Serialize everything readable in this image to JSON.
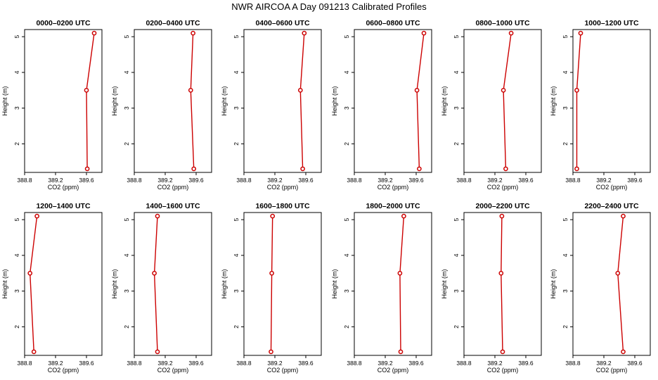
{
  "title": "NWR AIRCOA A  Day 091213  Calibrated Profiles",
  "chart_data": [
    {
      "type": "line",
      "title": "0000–0200 UTC",
      "xlabel": "CO2 (ppm)",
      "ylabel": "Height (m)",
      "xlim": [
        388.8,
        389.8
      ],
      "ylim": [
        1.2,
        5.2
      ],
      "xticks": [
        "388.8",
        "389.2",
        "389.6"
      ],
      "yticks": [
        "2",
        "3",
        "4",
        "5"
      ],
      "grid": false,
      "series": [
        {
          "points": [
            {
              "x": 389.61,
              "y": 1.3
            },
            {
              "x": 389.6,
              "y": 3.5
            },
            {
              "x": 389.7,
              "y": 5.1
            }
          ]
        }
      ]
    },
    {
      "type": "line",
      "title": "0200–0400 UTC",
      "xlabel": "CO2 (ppm)",
      "ylabel": "Height (m)",
      "xlim": [
        388.8,
        389.8
      ],
      "ylim": [
        1.2,
        5.2
      ],
      "xticks": [
        "388.8",
        "389.2",
        "389.6"
      ],
      "yticks": [
        "2",
        "3",
        "4",
        "5"
      ],
      "grid": false,
      "series": [
        {
          "points": [
            {
              "x": 389.57,
              "y": 1.3
            },
            {
              "x": 389.53,
              "y": 3.5
            },
            {
              "x": 389.56,
              "y": 5.1
            }
          ]
        }
      ]
    },
    {
      "type": "line",
      "title": "0400–0600 UTC",
      "xlabel": "CO2 (ppm)",
      "ylabel": "Height (m)",
      "xlim": [
        388.8,
        389.8
      ],
      "ylim": [
        1.2,
        5.2
      ],
      "xticks": [
        "388.8",
        "389.2",
        "389.6"
      ],
      "yticks": [
        "2",
        "3",
        "4",
        "5"
      ],
      "grid": false,
      "series": [
        {
          "points": [
            {
              "x": 389.56,
              "y": 1.3
            },
            {
              "x": 389.53,
              "y": 3.5
            },
            {
              "x": 389.58,
              "y": 5.1
            }
          ]
        }
      ]
    },
    {
      "type": "line",
      "title": "0600–0800 UTC",
      "xlabel": "CO2 (ppm)",
      "ylabel": "Height (m)",
      "xlim": [
        388.8,
        389.8
      ],
      "ylim": [
        1.2,
        5.2
      ],
      "xticks": [
        "388.8",
        "389.2",
        "389.6"
      ],
      "yticks": [
        "2",
        "3",
        "4",
        "5"
      ],
      "grid": false,
      "series": [
        {
          "points": [
            {
              "x": 389.64,
              "y": 1.3
            },
            {
              "x": 389.61,
              "y": 3.5
            },
            {
              "x": 389.7,
              "y": 5.1
            }
          ]
        }
      ]
    },
    {
      "type": "line",
      "title": "0800–1000 UTC",
      "xlabel": "CO2 (ppm)",
      "ylabel": "Height (m)",
      "xlim": [
        388.8,
        389.8
      ],
      "ylim": [
        1.2,
        5.2
      ],
      "xticks": [
        "388.8",
        "389.2",
        "389.6"
      ],
      "yticks": [
        "2",
        "3",
        "4",
        "5"
      ],
      "grid": false,
      "series": [
        {
          "points": [
            {
              "x": 389.34,
              "y": 1.3
            },
            {
              "x": 389.31,
              "y": 3.5
            },
            {
              "x": 389.41,
              "y": 5.1
            }
          ]
        }
      ]
    },
    {
      "type": "line",
      "title": "1000–1200 UTC",
      "xlabel": "CO2 (ppm)",
      "ylabel": "Height (m)",
      "xlim": [
        388.8,
        389.8
      ],
      "ylim": [
        1.2,
        5.2
      ],
      "xticks": [
        "388.8",
        "389.2",
        "389.6"
      ],
      "yticks": [
        "2",
        "3",
        "4",
        "5"
      ],
      "grid": false,
      "series": [
        {
          "points": [
            {
              "x": 388.85,
              "y": 1.3
            },
            {
              "x": 388.85,
              "y": 3.5
            },
            {
              "x": 388.9,
              "y": 5.1
            }
          ]
        }
      ]
    },
    {
      "type": "line",
      "title": "1200–1400 UTC",
      "xlabel": "CO2 (ppm)",
      "ylabel": "Height (m)",
      "xlim": [
        388.8,
        389.8
      ],
      "ylim": [
        1.2,
        5.2
      ],
      "xticks": [
        "388.8",
        "389.2",
        "389.6"
      ],
      "yticks": [
        "2",
        "3",
        "4",
        "5"
      ],
      "grid": false,
      "series": [
        {
          "points": [
            {
              "x": 388.92,
              "y": 1.3
            },
            {
              "x": 388.87,
              "y": 3.5
            },
            {
              "x": 388.96,
              "y": 5.1
            }
          ]
        }
      ]
    },
    {
      "type": "line",
      "title": "1400–1600 UTC",
      "xlabel": "CO2 (ppm)",
      "ylabel": "Height (m)",
      "xlim": [
        388.8,
        389.8
      ],
      "ylim": [
        1.2,
        5.2
      ],
      "xticks": [
        "388.8",
        "389.2",
        "389.6"
      ],
      "yticks": [
        "2",
        "3",
        "4",
        "5"
      ],
      "grid": false,
      "series": [
        {
          "points": [
            {
              "x": 389.1,
              "y": 1.3
            },
            {
              "x": 389.06,
              "y": 3.5
            },
            {
              "x": 389.1,
              "y": 5.1
            }
          ]
        }
      ]
    },
    {
      "type": "line",
      "title": "1600–1800 UTC",
      "xlabel": "CO2 (ppm)",
      "ylabel": "Height (m)",
      "xlim": [
        388.8,
        389.8
      ],
      "ylim": [
        1.2,
        5.2
      ],
      "xticks": [
        "388.8",
        "389.2",
        "389.6"
      ],
      "yticks": [
        "2",
        "3",
        "4",
        "5"
      ],
      "grid": false,
      "series": [
        {
          "points": [
            {
              "x": 389.15,
              "y": 1.3
            },
            {
              "x": 389.16,
              "y": 3.5
            },
            {
              "x": 389.17,
              "y": 5.1
            }
          ]
        }
      ]
    },
    {
      "type": "line",
      "title": "1800–2000 UTC",
      "xlabel": "CO2 (ppm)",
      "ylabel": "Height (m)",
      "xlim": [
        388.8,
        389.8
      ],
      "ylim": [
        1.2,
        5.2
      ],
      "xticks": [
        "388.8",
        "389.2",
        "389.6"
      ],
      "yticks": [
        "2",
        "3",
        "4",
        "5"
      ],
      "grid": false,
      "series": [
        {
          "points": [
            {
              "x": 389.4,
              "y": 1.3
            },
            {
              "x": 389.39,
              "y": 3.5
            },
            {
              "x": 389.44,
              "y": 5.1
            }
          ]
        }
      ]
    },
    {
      "type": "line",
      "title": "2000–2200 UTC",
      "xlabel": "CO2 (ppm)",
      "ylabel": "Height (m)",
      "xlim": [
        388.8,
        389.8
      ],
      "ylim": [
        1.2,
        5.2
      ],
      "xticks": [
        "388.8",
        "389.2",
        "389.6"
      ],
      "yticks": [
        "2",
        "3",
        "4",
        "5"
      ],
      "grid": false,
      "series": [
        {
          "points": [
            {
              "x": 389.3,
              "y": 1.3
            },
            {
              "x": 389.28,
              "y": 3.5
            },
            {
              "x": 389.29,
              "y": 5.1
            }
          ]
        }
      ]
    },
    {
      "type": "line",
      "title": "2200–2400 UTC",
      "xlabel": "CO2 (ppm)",
      "ylabel": "Height (m)",
      "xlim": [
        388.8,
        389.8
      ],
      "ylim": [
        1.2,
        5.2
      ],
      "xticks": [
        "388.8",
        "389.2",
        "389.6"
      ],
      "yticks": [
        "2",
        "3",
        "4",
        "5"
      ],
      "grid": false,
      "series": [
        {
          "points": [
            {
              "x": 389.45,
              "y": 1.3
            },
            {
              "x": 389.38,
              "y": 3.5
            },
            {
              "x": 389.45,
              "y": 5.1
            }
          ]
        }
      ]
    }
  ],
  "colors": {
    "line": "#cc0000",
    "marker": "#cc0000",
    "axis": "#000000"
  }
}
